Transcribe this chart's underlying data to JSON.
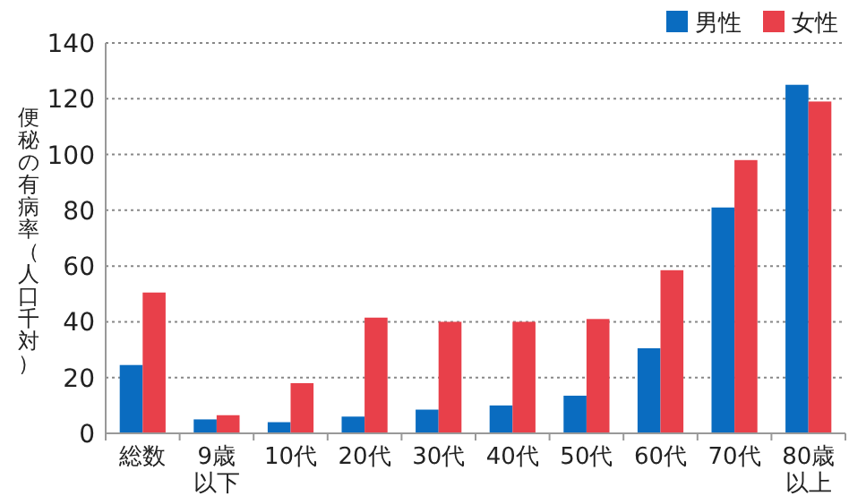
{
  "chart_data": {
    "type": "bar",
    "ylabel": "便秘の有病率（人口千対）",
    "categories": [
      "総数",
      "9歳以下",
      "10代",
      "20代",
      "30代",
      "40代",
      "50代",
      "60代",
      "70代",
      "80歳以上"
    ],
    "series": [
      {
        "name": "男性",
        "color": "#0a6cc0",
        "values": [
          24.5,
          5,
          4,
          6,
          8.5,
          10,
          13.5,
          30.5,
          81,
          125
        ]
      },
      {
        "name": "女性",
        "color": "#e8404a",
        "values": [
          50.5,
          6.5,
          18,
          41.5,
          40,
          40,
          41,
          58.5,
          98,
          119
        ]
      }
    ],
    "ylim": [
      0,
      140
    ],
    "yticks": [
      0,
      20,
      40,
      60,
      80,
      100,
      120,
      140
    ],
    "grid": "y",
    "legend": "top right"
  }
}
